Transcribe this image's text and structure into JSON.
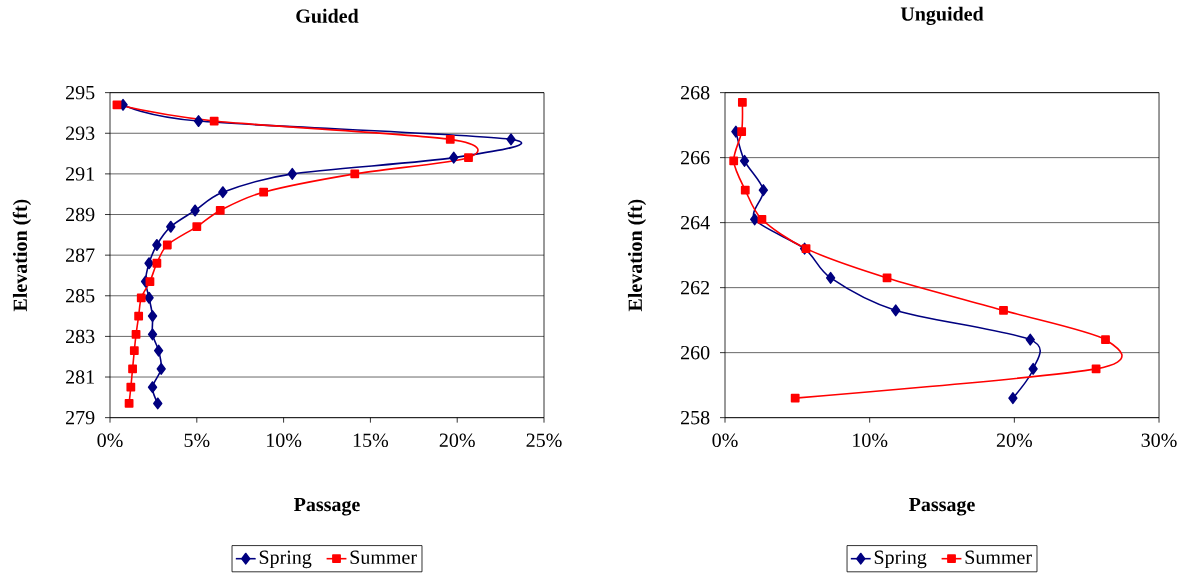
{
  "chart_data": [
    {
      "type": "line",
      "title": "Guided",
      "xlabel": "Passage",
      "ylabel": "Elevation (ft)",
      "xlim": [
        0,
        25
      ],
      "xticks": [
        {
          "value": 0,
          "label": "0%"
        },
        {
          "value": 5,
          "label": "5%"
        },
        {
          "value": 10,
          "label": "10%"
        },
        {
          "value": 15,
          "label": "15%"
        },
        {
          "value": 20,
          "label": "20%"
        },
        {
          "value": 25,
          "label": "25%"
        }
      ],
      "ylim": [
        279,
        295
      ],
      "yticks": [
        279,
        281,
        283,
        285,
        287,
        289,
        291,
        293,
        295
      ],
      "grid": "y",
      "legend": "bottom",
      "series": [
        {
          "name": "Spring",
          "color": "#000080",
          "marker": "diamond",
          "x": [
            0.75,
            5.1,
            23.1,
            19.8,
            10.5,
            6.5,
            4.9,
            3.5,
            2.7,
            2.25,
            2.05,
            2.25,
            2.45,
            2.45,
            2.8,
            2.95,
            2.45,
            2.75
          ],
          "values": [
            294.4,
            293.6,
            292.7,
            291.8,
            291.0,
            290.1,
            289.2,
            288.4,
            287.5,
            286.6,
            285.7,
            284.9,
            284.0,
            283.1,
            282.3,
            281.4,
            280.5,
            279.7
          ]
        },
        {
          "name": "Summer",
          "color": "#ff0000",
          "marker": "square",
          "x": [
            0.4,
            6.0,
            19.6,
            20.65,
            14.1,
            8.85,
            6.35,
            5.0,
            3.3,
            2.7,
            2.3,
            1.8,
            1.65,
            1.5,
            1.4,
            1.3,
            1.2,
            1.1
          ],
          "values": [
            294.4,
            293.6,
            292.7,
            291.8,
            291.0,
            290.1,
            289.2,
            288.4,
            287.5,
            286.6,
            285.7,
            284.9,
            284.0,
            283.1,
            282.3,
            281.4,
            280.5,
            279.7
          ]
        }
      ]
    },
    {
      "type": "line",
      "title": "Unguided",
      "xlabel": "Passage",
      "ylabel": "Elevation (ft)",
      "xlim": [
        0,
        30
      ],
      "xticks": [
        {
          "value": 0,
          "label": "0%"
        },
        {
          "value": 10,
          "label": "10%"
        },
        {
          "value": 20,
          "label": "20%"
        },
        {
          "value": 30,
          "label": "30%"
        }
      ],
      "ylim": [
        258,
        268
      ],
      "yticks": [
        258,
        260,
        262,
        264,
        266,
        268
      ],
      "grid": "y",
      "legend": "bottom",
      "series": [
        {
          "name": "Spring",
          "color": "#000080",
          "marker": "diamond",
          "x": [
            0.75,
            1.35,
            2.65,
            2.05,
            5.5,
            7.3,
            11.8,
            21.1,
            21.3,
            19.9
          ],
          "values": [
            266.8,
            265.9,
            265.0,
            264.1,
            263.2,
            262.3,
            261.3,
            260.4,
            259.5,
            258.6
          ]
        },
        {
          "name": "Summer",
          "color": "#ff0000",
          "marker": "square",
          "x": [
            1.2,
            1.15,
            0.6,
            1.4,
            2.55,
            5.6,
            11.2,
            19.25,
            26.3,
            25.65,
            4.85
          ],
          "values": [
            267.7,
            266.8,
            265.9,
            265.0,
            264.1,
            263.2,
            262.3,
            261.3,
            260.4,
            259.5,
            258.6
          ]
        }
      ]
    }
  ]
}
